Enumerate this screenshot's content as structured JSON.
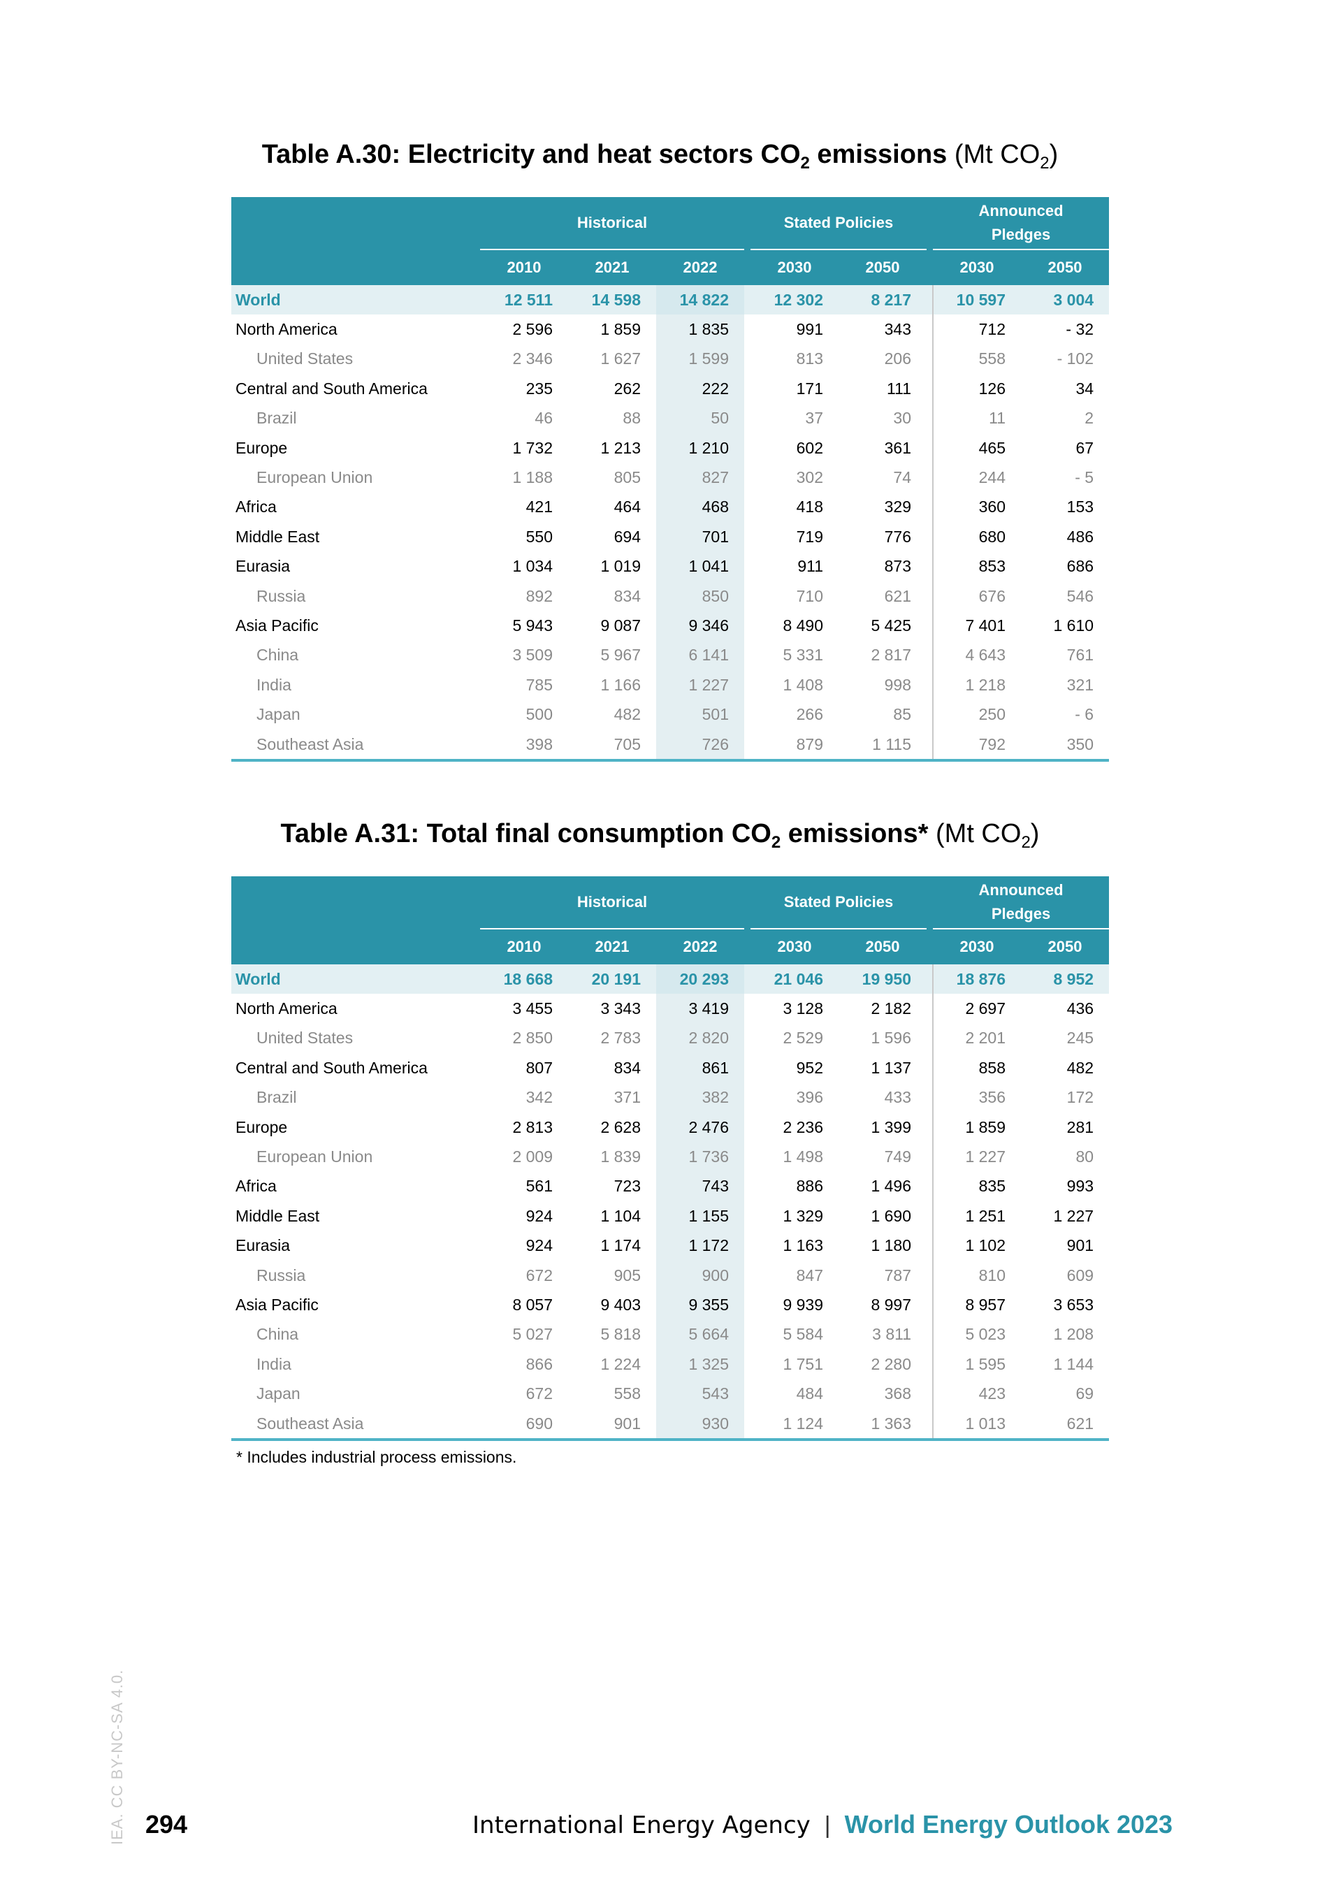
{
  "table1": {
    "title_main": "Table A.30: Electricity and heat sectors CO",
    "title_sub": "2",
    "title_after": " emissions",
    "unit_pre": " (Mt CO",
    "unit_sub": "2",
    "unit_post": ")",
    "groups": {
      "historical": "Historical",
      "stated": "Stated Policies",
      "announced": "Announced Pledges"
    },
    "years": [
      "2010",
      "2021",
      "2022",
      "2030",
      "2050",
      "2030",
      "2050"
    ],
    "rows": [
      {
        "name": "World",
        "type": "world",
        "v": [
          "12 511",
          "14 598",
          "14 822",
          "12 302",
          "8 217",
          "10 597",
          "3 004"
        ]
      },
      {
        "name": "North America",
        "type": "main",
        "v": [
          "2 596",
          "1 859",
          "1 835",
          "991",
          "343",
          "712",
          "- 32"
        ]
      },
      {
        "name": "United States",
        "type": "sub",
        "v": [
          "2 346",
          "1 627",
          "1 599",
          "813",
          "206",
          "558",
          "- 102"
        ]
      },
      {
        "name": "Central and South America",
        "type": "main",
        "v": [
          "235",
          "262",
          "222",
          "171",
          "111",
          "126",
          "34"
        ]
      },
      {
        "name": "Brazil",
        "type": "sub",
        "v": [
          "46",
          "88",
          "50",
          "37",
          "30",
          "11",
          "2"
        ]
      },
      {
        "name": "Europe",
        "type": "main",
        "v": [
          "1 732",
          "1 213",
          "1 210",
          "602",
          "361",
          "465",
          "67"
        ]
      },
      {
        "name": "European Union",
        "type": "sub",
        "v": [
          "1 188",
          "805",
          "827",
          "302",
          "74",
          "244",
          "- 5"
        ]
      },
      {
        "name": "Africa",
        "type": "main",
        "v": [
          "421",
          "464",
          "468",
          "418",
          "329",
          "360",
          "153"
        ]
      },
      {
        "name": "Middle East",
        "type": "main",
        "v": [
          "550",
          "694",
          "701",
          "719",
          "776",
          "680",
          "486"
        ]
      },
      {
        "name": "Eurasia",
        "type": "main",
        "v": [
          "1 034",
          "1 019",
          "1 041",
          "911",
          "873",
          "853",
          "686"
        ]
      },
      {
        "name": "Russia",
        "type": "sub",
        "v": [
          "892",
          "834",
          "850",
          "710",
          "621",
          "676",
          "546"
        ]
      },
      {
        "name": "Asia Pacific",
        "type": "main",
        "v": [
          "5 943",
          "9 087",
          "9 346",
          "8 490",
          "5 425",
          "7 401",
          "1 610"
        ]
      },
      {
        "name": "China",
        "type": "sub",
        "v": [
          "3 509",
          "5 967",
          "6 141",
          "5 331",
          "2 817",
          "4 643",
          "761"
        ]
      },
      {
        "name": "India",
        "type": "sub",
        "v": [
          "785",
          "1 166",
          "1 227",
          "1 408",
          "998",
          "1 218",
          "321"
        ]
      },
      {
        "name": "Japan",
        "type": "sub",
        "v": [
          "500",
          "482",
          "501",
          "266",
          "85",
          "250",
          "- 6"
        ]
      },
      {
        "name": "Southeast Asia",
        "type": "sub",
        "v": [
          "398",
          "705",
          "726",
          "879",
          "1 115",
          "792",
          "350"
        ]
      }
    ]
  },
  "table2": {
    "title_main": "Table A.31: Total final consumption CO",
    "title_sub": "2",
    "title_after": " emissions*",
    "unit_pre": " (Mt CO",
    "unit_sub": "2",
    "unit_post": ")",
    "groups": {
      "historical": "Historical",
      "stated": "Stated Policies",
      "announced": "Announced Pledges"
    },
    "years": [
      "2010",
      "2021",
      "2022",
      "2030",
      "2050",
      "2030",
      "2050"
    ],
    "rows": [
      {
        "name": "World",
        "type": "world",
        "v": [
          "18 668",
          "20 191",
          "20 293",
          "21 046",
          "19 950",
          "18 876",
          "8 952"
        ]
      },
      {
        "name": "North America",
        "type": "main",
        "v": [
          "3 455",
          "3 343",
          "3 419",
          "3 128",
          "2 182",
          "2 697",
          "436"
        ]
      },
      {
        "name": "United States",
        "type": "sub",
        "v": [
          "2 850",
          "2 783",
          "2 820",
          "2 529",
          "1 596",
          "2 201",
          "245"
        ]
      },
      {
        "name": "Central and South America",
        "type": "main",
        "v": [
          "807",
          "834",
          "861",
          "952",
          "1 137",
          "858",
          "482"
        ]
      },
      {
        "name": "Brazil",
        "type": "sub",
        "v": [
          "342",
          "371",
          "382",
          "396",
          "433",
          "356",
          "172"
        ]
      },
      {
        "name": "Europe",
        "type": "main",
        "v": [
          "2 813",
          "2 628",
          "2 476",
          "2 236",
          "1 399",
          "1 859",
          "281"
        ]
      },
      {
        "name": "European Union",
        "type": "sub",
        "v": [
          "2 009",
          "1 839",
          "1 736",
          "1 498",
          "749",
          "1 227",
          "80"
        ]
      },
      {
        "name": "Africa",
        "type": "main",
        "v": [
          "561",
          "723",
          "743",
          "886",
          "1 496",
          "835",
          "993"
        ]
      },
      {
        "name": "Middle East",
        "type": "main",
        "v": [
          "924",
          "1 104",
          "1 155",
          "1 329",
          "1 690",
          "1 251",
          "1 227"
        ]
      },
      {
        "name": "Eurasia",
        "type": "main",
        "v": [
          "924",
          "1 174",
          "1 172",
          "1 163",
          "1 180",
          "1 102",
          "901"
        ]
      },
      {
        "name": "Russia",
        "type": "sub",
        "v": [
          "672",
          "905",
          "900",
          "847",
          "787",
          "810",
          "609"
        ]
      },
      {
        "name": "Asia Pacific",
        "type": "main",
        "v": [
          "8 057",
          "9 403",
          "9 355",
          "9 939",
          "8 997",
          "8 957",
          "3 653"
        ]
      },
      {
        "name": "China",
        "type": "sub",
        "v": [
          "5 027",
          "5 818",
          "5 664",
          "5 584",
          "3 811",
          "5 023",
          "1 208"
        ]
      },
      {
        "name": "India",
        "type": "sub",
        "v": [
          "866",
          "1 224",
          "1 325",
          "1 751",
          "2 280",
          "1 595",
          "1 144"
        ]
      },
      {
        "name": "Japan",
        "type": "sub",
        "v": [
          "672",
          "558",
          "543",
          "484",
          "368",
          "423",
          "69"
        ]
      },
      {
        "name": "Southeast Asia",
        "type": "sub",
        "v": [
          "690",
          "901",
          "930",
          "1 124",
          "1 363",
          "1 013",
          "621"
        ]
      }
    ],
    "footnote": "* Includes industrial process emissions."
  },
  "footer": {
    "license": "IEA. CC BY-NC-SA 4.0.",
    "page_number": "294",
    "organization": "International Energy Agency",
    "separator": "|",
    "publication": "World Energy Outlook 2023"
  }
}
